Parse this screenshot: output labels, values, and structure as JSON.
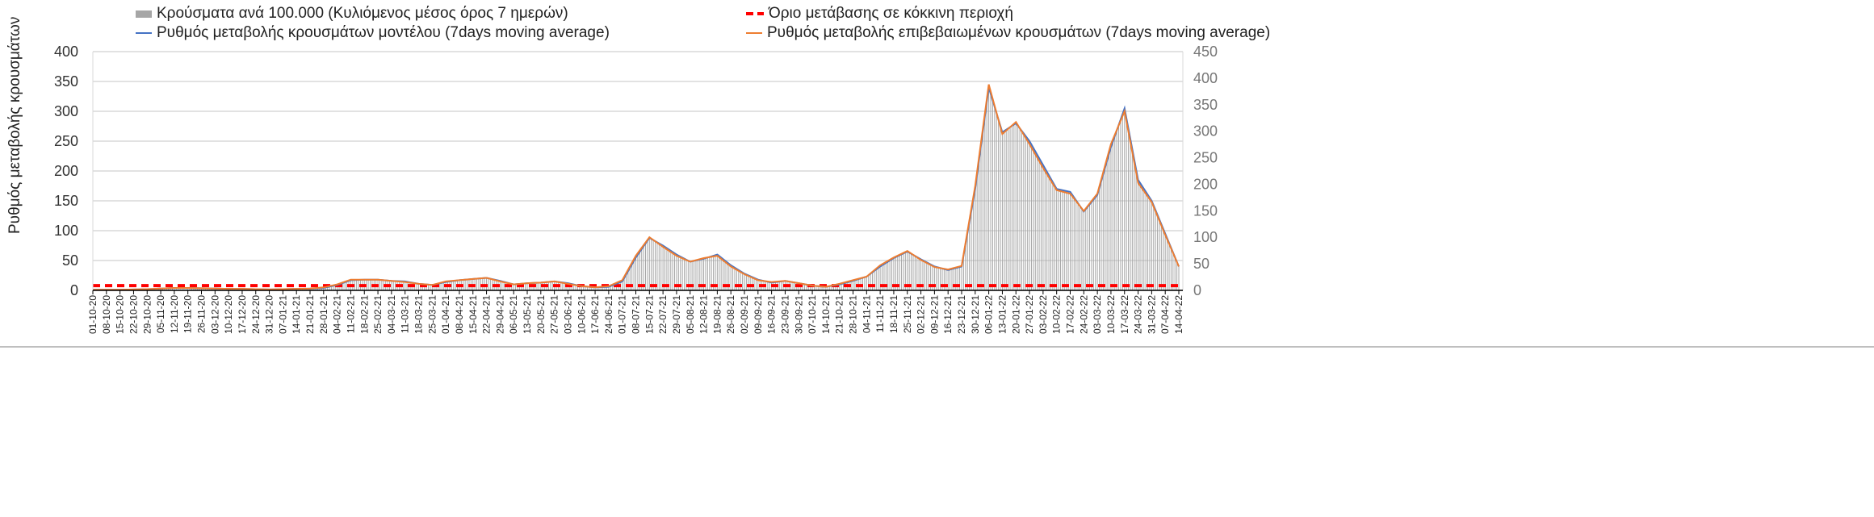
{
  "chart_data": {
    "type": "bar+line",
    "ylabel_left": "Ρυθμός μεταβολής κρουσμάτων",
    "ylim_left": [
      0,
      400
    ],
    "yticks_left": [
      "0",
      "50",
      "100",
      "150",
      "200",
      "250",
      "300",
      "350",
      "400"
    ],
    "ylim_right": [
      0,
      450
    ],
    "yticks_right": [
      "0",
      "50",
      "100",
      "150",
      "200",
      "250",
      "300",
      "350",
      "400",
      "450"
    ],
    "grid": true,
    "legend": [
      {
        "label": "Κρούσματα ανά 100.000 (Κυλιόμενος μέσος όρος 7 ημερών)",
        "color": "#a6a6a6",
        "kind": "bar"
      },
      {
        "label": "Όριο μετάβασης σε κόκκινη περιοχή",
        "color": "#ff0000",
        "kind": "dash"
      },
      {
        "label": "Ρυθμός μεταβολής κρουσμάτων μοντέλου (7days moving average)",
        "color": "#4472c4",
        "kind": "line"
      },
      {
        "label": "Ρυθμός μεταβολής επιβεβαιωμένων κρουσμάτων (7days moving average)",
        "color": "#ed7d31",
        "kind": "line"
      }
    ],
    "x": [
      "01-10-20",
      "08-10-20",
      "15-10-20",
      "22-10-20",
      "29-10-20",
      "05-11-20",
      "12-11-20",
      "19-11-20",
      "26-11-20",
      "03-12-20",
      "10-12-20",
      "17-12-20",
      "24-12-20",
      "31-12-20",
      "07-01-21",
      "14-01-21",
      "21-01-21",
      "28-01-21",
      "04-02-21",
      "11-02-21",
      "18-02-21",
      "25-02-21",
      "04-03-21",
      "11-03-21",
      "18-03-21",
      "25-03-21",
      "01-04-21",
      "08-04-21",
      "15-04-21",
      "22-04-21",
      "29-04-21",
      "06-05-21",
      "13-05-21",
      "20-05-21",
      "27-05-21",
      "03-06-21",
      "10-06-21",
      "17-06-21",
      "24-06-21",
      "01-07-21",
      "08-07-21",
      "15-07-21",
      "22-07-21",
      "29-07-21",
      "05-08-21",
      "12-08-21",
      "19-08-21",
      "26-08-21",
      "02-09-21",
      "09-09-21",
      "16-09-21",
      "23-09-21",
      "30-09-21",
      "07-10-21",
      "14-10-21",
      "21-10-21",
      "28-10-21",
      "04-11-21",
      "11-11-21",
      "18-11-21",
      "25-11-21",
      "02-12-21",
      "09-12-21",
      "16-12-21",
      "23-12-21",
      "30-12-21",
      "06-01-22",
      "13-01-22",
      "20-01-22",
      "27-01-22",
      "03-02-22",
      "10-02-22",
      "17-02-22",
      "24-02-22",
      "03-03-22",
      "10-03-22",
      "17-03-22",
      "24-03-22",
      "31-03-22",
      "07-04-22",
      "14-04-22"
    ],
    "series": [
      {
        "name": "Κρούσματα ανά 100.000 (Κυλιόμενος μέσος όρος 7 ημερών)",
        "axis": "right",
        "values": [
          1,
          1,
          1,
          2,
          2,
          3,
          4,
          4,
          4,
          3,
          3,
          3,
          2,
          2,
          2,
          3,
          3,
          4,
          10,
          19,
          20,
          20,
          18,
          17,
          12,
          10,
          16,
          19,
          21,
          24,
          18,
          11,
          13,
          15,
          17,
          13,
          8,
          6,
          7,
          17,
          62,
          99,
          84,
          67,
          54,
          60,
          67,
          47,
          31,
          20,
          15,
          18,
          13,
          9,
          7,
          11,
          18,
          26,
          45,
          61,
          73,
          58,
          45,
          38,
          45,
          190,
          381,
          297,
          314,
          280,
          235,
          190,
          185,
          148,
          179,
          269,
          342,
          207,
          168,
          106,
          45
        ]
      },
      {
        "name": "Ρυθμός μεταβολής κρουσμάτων μοντέλου (7days moving average)",
        "axis": "left",
        "values": [
          1,
          1,
          1,
          1.5,
          2,
          3,
          4,
          4,
          3.5,
          3,
          2.5,
          2.5,
          2,
          1.5,
          2,
          2.5,
          3,
          4,
          9,
          17,
          18,
          18,
          16,
          15,
          11,
          9,
          14,
          17,
          19,
          21,
          16,
          10,
          12,
          13,
          15,
          12,
          7,
          5,
          6,
          15,
          55,
          88,
          75,
          60,
          48,
          53,
          60,
          42,
          28,
          18,
          13,
          16,
          12,
          8,
          6,
          10,
          16,
          23,
          40,
          54,
          65,
          52,
          40,
          34,
          40,
          170,
          340,
          265,
          280,
          250,
          210,
          170,
          165,
          132,
          160,
          240,
          305,
          185,
          150,
          95,
          40
        ]
      },
      {
        "name": "Ρυθμός μεταβολής επιβεβαιωμένων κρουσμάτων (7days moving average)",
        "axis": "left",
        "values": [
          1,
          1,
          1,
          1.5,
          2,
          3,
          4,
          4,
          3.5,
          3,
          2.5,
          2.5,
          2,
          1.5,
          2,
          2.5,
          3,
          5,
          10,
          18,
          18,
          18,
          16,
          14,
          11,
          9,
          15,
          17,
          19,
          21,
          15,
          10,
          12,
          13,
          15,
          11,
          7,
          5,
          7,
          17,
          58,
          89,
          73,
          58,
          48,
          54,
          58,
          40,
          27,
          17,
          14,
          16,
          12,
          8,
          6,
          11,
          17,
          23,
          42,
          55,
          66,
          51,
          39,
          35,
          41,
          175,
          345,
          262,
          282,
          245,
          205,
          168,
          162,
          133,
          162,
          245,
          300,
          180,
          148,
          93,
          40
        ]
      },
      {
        "name": "Όριο μετάβασης σε κόκκινη περιοχή",
        "axis": "left",
        "value": 8
      }
    ]
  }
}
